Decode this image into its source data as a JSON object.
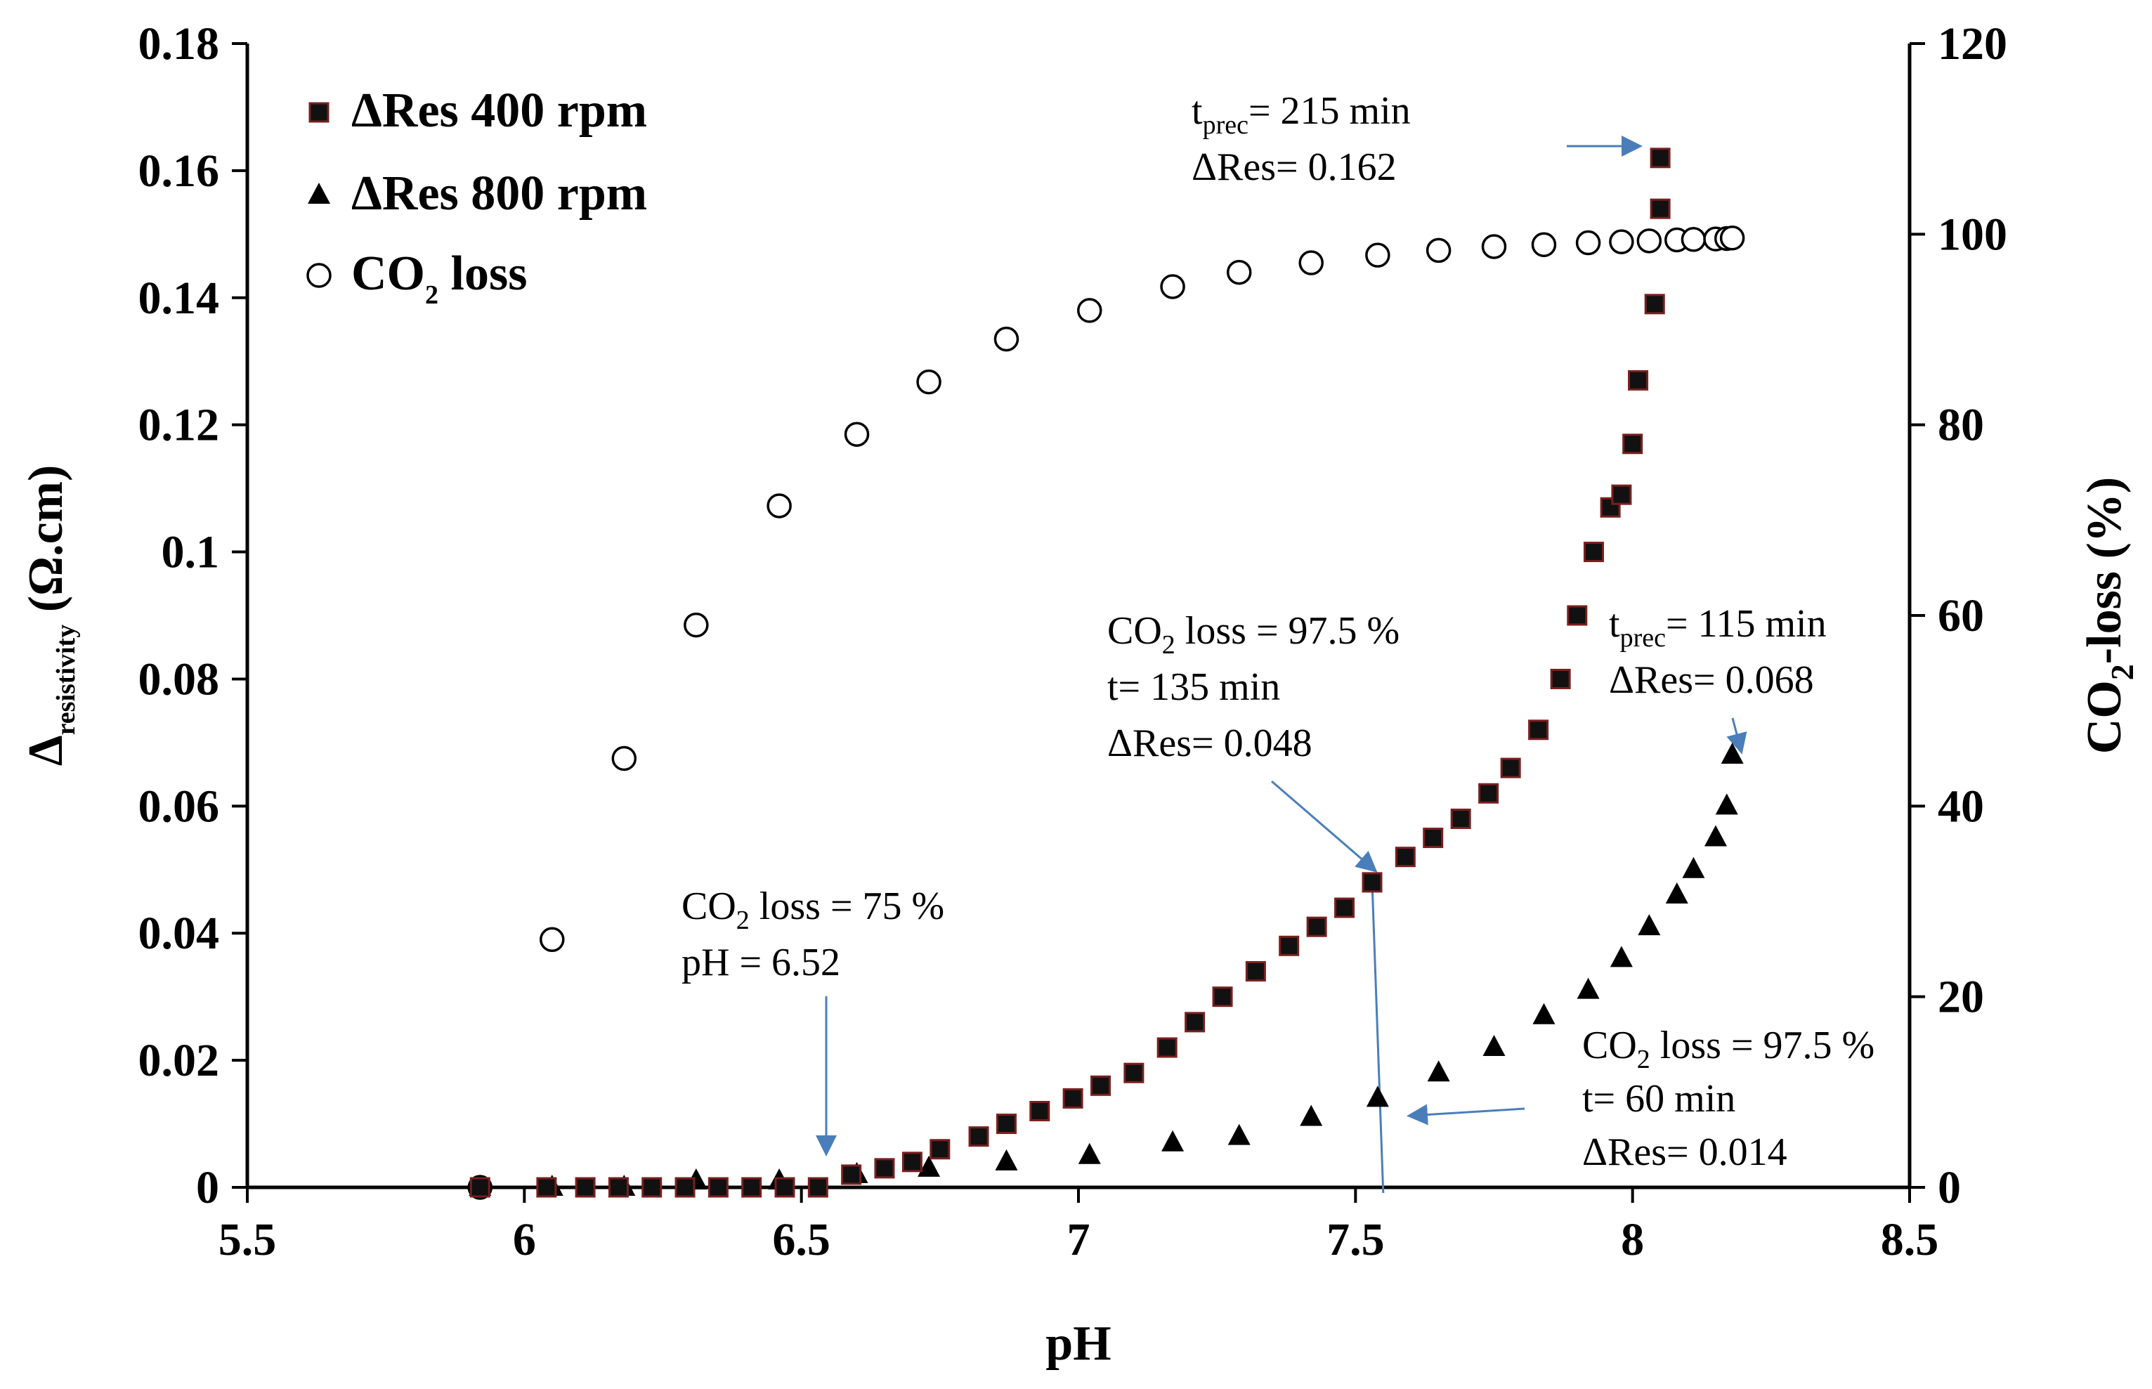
{
  "chart_data": {
    "type": "scatter",
    "xlabel": "pH",
    "ylabel": {
      "main": "Δ",
      "sub": "resistivity",
      "rest": " (Ω.cm)"
    },
    "y2label": {
      "pre": "CO",
      "sub": "2",
      "post": "-loss (%)"
    },
    "xlim": [
      5.5,
      8.5
    ],
    "ylim": [
      0,
      0.18
    ],
    "y2lim": [
      0,
      120
    ],
    "xticks": [
      "5.5",
      "6",
      "6.5",
      "7",
      "7.5",
      "8",
      "8.5"
    ],
    "yticks": [
      "0",
      "0.02",
      "0.04",
      "0.06",
      "0.08",
      "0.1",
      "0.12",
      "0.14",
      "0.16",
      "0.18"
    ],
    "y2ticks": [
      "0",
      "20",
      "40",
      "60",
      "80",
      "100",
      "120"
    ],
    "grid": false,
    "legend_position": "top-left",
    "series": [
      {
        "name": {
          "pre": "ΔRes 400 rpm",
          "sub": "",
          "post": ""
        },
        "marker": "square",
        "axis": "left",
        "points": [
          [
            5.92,
            0.0
          ],
          [
            6.04,
            0.0
          ],
          [
            6.11,
            0.0
          ],
          [
            6.17,
            0.0
          ],
          [
            6.23,
            0.0
          ],
          [
            6.29,
            0.0
          ],
          [
            6.35,
            0.0
          ],
          [
            6.41,
            0.0
          ],
          [
            6.47,
            0.0
          ],
          [
            6.53,
            0.0
          ],
          [
            6.59,
            0.002
          ],
          [
            6.65,
            0.003
          ],
          [
            6.7,
            0.004
          ],
          [
            6.75,
            0.006
          ],
          [
            6.82,
            0.008
          ],
          [
            6.87,
            0.01
          ],
          [
            6.93,
            0.012
          ],
          [
            6.99,
            0.014
          ],
          [
            7.04,
            0.016
          ],
          [
            7.1,
            0.018
          ],
          [
            7.16,
            0.022
          ],
          [
            7.21,
            0.026
          ],
          [
            7.26,
            0.03
          ],
          [
            7.32,
            0.034
          ],
          [
            7.38,
            0.038
          ],
          [
            7.43,
            0.041
          ],
          [
            7.48,
            0.044
          ],
          [
            7.53,
            0.048
          ],
          [
            7.59,
            0.052
          ],
          [
            7.64,
            0.055
          ],
          [
            7.69,
            0.058
          ],
          [
            7.74,
            0.062
          ],
          [
            7.78,
            0.066
          ],
          [
            7.83,
            0.072
          ],
          [
            7.87,
            0.08
          ],
          [
            7.9,
            0.09
          ],
          [
            7.93,
            0.1
          ],
          [
            7.96,
            0.107
          ],
          [
            7.98,
            0.109
          ],
          [
            8.0,
            0.117
          ],
          [
            8.01,
            0.127
          ],
          [
            8.04,
            0.139
          ],
          [
            8.05,
            0.154
          ],
          [
            8.05,
            0.162
          ]
        ]
      },
      {
        "name": {
          "pre": "ΔRes 800 rpm",
          "sub": "",
          "post": ""
        },
        "marker": "triangle",
        "axis": "left",
        "points": [
          [
            5.92,
            0.0
          ],
          [
            6.05,
            0.0
          ],
          [
            6.18,
            0.0
          ],
          [
            6.31,
            0.001
          ],
          [
            6.46,
            0.001
          ],
          [
            6.6,
            0.002
          ],
          [
            6.73,
            0.003
          ],
          [
            6.87,
            0.004
          ],
          [
            7.02,
            0.005
          ],
          [
            7.17,
            0.007
          ],
          [
            7.29,
            0.008
          ],
          [
            7.42,
            0.011
          ],
          [
            7.54,
            0.014
          ],
          [
            7.65,
            0.018
          ],
          [
            7.75,
            0.022
          ],
          [
            7.84,
            0.027
          ],
          [
            7.92,
            0.031
          ],
          [
            7.98,
            0.036
          ],
          [
            8.03,
            0.041
          ],
          [
            8.08,
            0.046
          ],
          [
            8.11,
            0.05
          ],
          [
            8.15,
            0.055
          ],
          [
            8.17,
            0.06
          ],
          [
            8.18,
            0.068
          ]
        ]
      },
      {
        "name": {
          "pre": "CO",
          "sub": "2",
          "post": " loss"
        },
        "marker": "circle-open",
        "axis": "right",
        "points": [
          [
            5.92,
            0
          ],
          [
            6.05,
            26
          ],
          [
            6.18,
            45
          ],
          [
            6.31,
            59
          ],
          [
            6.46,
            71.5
          ],
          [
            6.6,
            79
          ],
          [
            6.73,
            84.5
          ],
          [
            6.87,
            89
          ],
          [
            7.02,
            92
          ],
          [
            7.17,
            94.5
          ],
          [
            7.29,
            96
          ],
          [
            7.42,
            97
          ],
          [
            7.54,
            97.8
          ],
          [
            7.65,
            98.3
          ],
          [
            7.75,
            98.7
          ],
          [
            7.84,
            98.9
          ],
          [
            7.92,
            99.1
          ],
          [
            7.98,
            99.2
          ],
          [
            8.03,
            99.3
          ],
          [
            8.08,
            99.4
          ],
          [
            8.11,
            99.45
          ],
          [
            8.15,
            99.5
          ],
          [
            8.17,
            99.55
          ],
          [
            8.18,
            99.6
          ]
        ]
      }
    ],
    "annotations": [
      {
        "lines": [
          {
            "pre": "t",
            "sub": "prec",
            "post": "= 215 min"
          },
          {
            "pre": "ΔRes= 0.162",
            "sub": "",
            "post": ""
          }
        ],
        "point_to": [
          8.05,
          0.162
        ]
      },
      {
        "lines": [
          {
            "pre": "CO",
            "sub": "2",
            "post": " loss = 97.5 %"
          },
          {
            "pre": "t= 135 min",
            "sub": "",
            "post": ""
          },
          {
            "pre": "ΔRes= 0.048",
            "sub": "",
            "post": ""
          }
        ],
        "point_to": [
          7.53,
          0.048
        ]
      },
      {
        "lines": [
          {
            "pre": "t",
            "sub": "prec",
            "post": "= 115 min"
          },
          {
            "pre": "ΔRes= 0.068",
            "sub": "",
            "post": ""
          }
        ],
        "point_to": [
          8.18,
          0.068
        ]
      },
      {
        "lines": [
          {
            "pre": "CO",
            "sub": "2",
            "post": " loss = 75 %"
          },
          {
            "pre": "pH = 6.52",
            "sub": "",
            "post": ""
          }
        ],
        "point_to": [
          6.53,
          0.0
        ]
      },
      {
        "lines": [
          {
            "pre": "CO",
            "sub": "2",
            "post": " loss = 97.5 %"
          },
          {
            "pre": "t= 60 min",
            "sub": "",
            "post": ""
          },
          {
            "pre": "ΔRes= 0.014",
            "sub": "",
            "post": ""
          }
        ],
        "point_to": [
          7.54,
          0.014
        ]
      }
    ],
    "colors": {
      "axis": "#000000",
      "square_fill": "#111111",
      "square_edge": "#7a1f1f",
      "triangle": "#000000",
      "circle": "#000000",
      "arrow": "#4a7ebb"
    }
  }
}
